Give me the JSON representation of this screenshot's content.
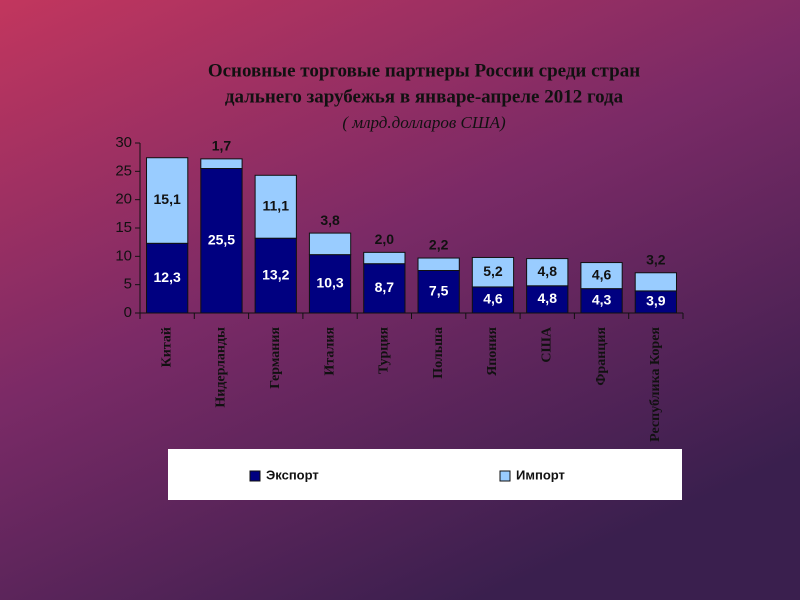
{
  "chart_data": {
    "type": "stacked-bar",
    "title": [
      "Основные торговые партнеры России среди стран",
      "дальнего зарубежья в январе-апреле 2012 года"
    ],
    "subtitle": "( млрд.долларов США)",
    "categories": [
      "Китай",
      "Нидерланды",
      "Германия",
      "Италия",
      "Турция",
      "Польша",
      "Япония",
      "США",
      "Франция",
      "Республика Корея"
    ],
    "series": [
      {
        "name": "Экспорт",
        "color": "#000080",
        "values": [
          12.3,
          25.5,
          13.2,
          10.3,
          8.7,
          7.5,
          4.6,
          4.8,
          4.3,
          3.9
        ],
        "value_labels": [
          "12,3",
          "25,5",
          "13,2",
          "10,3",
          "8,7",
          "7,5",
          "4,6",
          "4,8",
          "4,3",
          "3,9"
        ]
      },
      {
        "name": "Импорт",
        "color": "#99ccff",
        "values": [
          15.1,
          1.7,
          11.1,
          3.8,
          2.0,
          2.2,
          5.2,
          4.8,
          4.6,
          3.2
        ],
        "value_labels": [
          "15,1",
          "1,7",
          "11,1",
          "3,8",
          "2,0",
          "2,2",
          "5,2",
          "4,8",
          "4,6",
          "3,2"
        ]
      }
    ],
    "ylim": [
      0,
      30
    ],
    "yticks": [
      0,
      5,
      10,
      15,
      20,
      25,
      30
    ],
    "legend": "bottom"
  }
}
